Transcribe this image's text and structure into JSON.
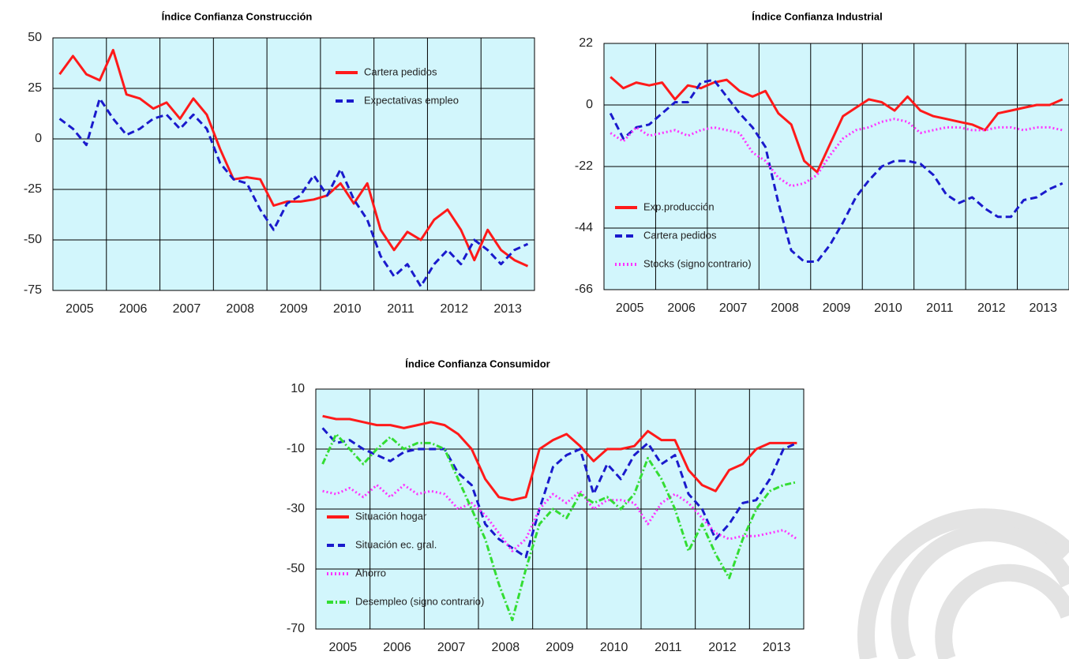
{
  "chart_data": [
    {
      "type": "line",
      "title": "Índice Confianza Construcción",
      "categories": [
        "2005",
        null,
        null,
        null,
        "2006",
        null,
        null,
        null,
        "2007",
        null,
        null,
        null,
        "2008",
        null,
        null,
        null,
        "2009",
        null,
        null,
        null,
        "2010",
        null,
        null,
        null,
        "2011",
        null,
        null,
        null,
        "2012",
        null,
        null,
        null,
        "2013",
        null,
        null,
        null
      ],
      "series": [
        {
          "name": "Cartera pedidos",
          "color": "#ff1a1a",
          "style": "solid",
          "values": [
            32,
            41,
            32,
            29,
            44,
            22,
            20,
            15,
            18,
            10,
            20,
            12,
            -5,
            -20,
            -19,
            -20,
            -33,
            -31,
            -31,
            -30,
            -28,
            -22,
            -32,
            -22,
            -45,
            -55,
            -46,
            -50,
            -40,
            -35,
            -45,
            -60,
            -45,
            -55,
            -60,
            -63
          ]
        },
        {
          "name": "Expectativas empleo",
          "color": "#1a1acc",
          "style": "dashed",
          "values": [
            10,
            5,
            -3,
            20,
            10,
            2,
            5,
            10,
            12,
            5,
            12,
            5,
            -12,
            -20,
            -22,
            -35,
            -45,
            -32,
            -28,
            -18,
            -28,
            -15,
            -30,
            -40,
            -58,
            -68,
            -62,
            -73,
            -62,
            -55,
            -62,
            -50,
            -55,
            -62,
            -55,
            -52
          ]
        }
      ],
      "ylim": [
        -75,
        50
      ],
      "yticks": [
        -75,
        -50,
        -25,
        0,
        25,
        50
      ],
      "grid": true,
      "legend": "upper right"
    },
    {
      "type": "line",
      "title": "Índice Confianza Industrial",
      "categories": [
        "2005",
        null,
        null,
        null,
        "2006",
        null,
        null,
        null,
        "2007",
        null,
        null,
        null,
        "2008",
        null,
        null,
        null,
        "2009",
        null,
        null,
        null,
        "2010",
        null,
        null,
        null,
        "2011",
        null,
        null,
        null,
        "2012",
        null,
        null,
        null,
        "2013",
        null,
        null,
        null
      ],
      "series": [
        {
          "name": "Exp.producción",
          "color": "#ff1a1a",
          "style": "solid",
          "values": [
            10,
            6,
            8,
            7,
            8,
            2,
            7,
            6,
            8,
            9,
            5,
            3,
            5,
            -3,
            -7,
            -20,
            -24,
            -14,
            -4,
            -1,
            2,
            1,
            -2,
            3,
            -2,
            -4,
            -5,
            -6,
            -7,
            -9,
            -3,
            -2,
            -1,
            0,
            0,
            2
          ]
        },
        {
          "name": "Cartera pedidos",
          "color": "#1a1acc",
          "style": "dashed",
          "values": [
            -3,
            -12,
            -8,
            -7,
            -3,
            1,
            1,
            8,
            9,
            3,
            -3,
            -8,
            -15,
            -35,
            -52,
            -56,
            -56,
            -50,
            -42,
            -33,
            -27,
            -22,
            -20,
            -20,
            -21,
            -25,
            -32,
            -35,
            -33,
            -37,
            -40,
            -40,
            -34,
            -33,
            -30,
            -28
          ]
        },
        {
          "name": "Stocks (signo contrario)",
          "color": "#ff33ff",
          "style": "dotted",
          "values": [
            -10,
            -13,
            -8,
            -11,
            -10,
            -9,
            -11,
            -9,
            -8,
            -9,
            -10,
            -17,
            -20,
            -26,
            -29,
            -28,
            -25,
            -18,
            -12,
            -9,
            -8,
            -6,
            -5,
            -6,
            -10,
            -9,
            -8,
            -8,
            -9,
            -9,
            -8,
            -8,
            -9,
            -8,
            -8,
            -9
          ]
        }
      ],
      "ylim": [
        -66,
        22
      ],
      "yticks": [
        -66,
        -44,
        -22,
        0,
        22
      ],
      "grid": true,
      "legend": "lower left"
    },
    {
      "type": "line",
      "title": "Índice Confianza Consumidor",
      "categories": [
        "2005",
        null,
        null,
        null,
        "2006",
        null,
        null,
        null,
        "2007",
        null,
        null,
        null,
        "2008",
        null,
        null,
        null,
        "2009",
        null,
        null,
        null,
        "2010",
        null,
        null,
        null,
        "2011",
        null,
        null,
        null,
        "2012",
        null,
        null,
        null,
        "2013",
        null,
        null,
        null
      ],
      "series": [
        {
          "name": "Situación hogar",
          "color": "#ff1a1a",
          "style": "solid",
          "values": [
            1,
            0,
            0,
            -1,
            -2,
            -2,
            -3,
            -2,
            -1,
            -2,
            -5,
            -10,
            -20,
            -26,
            -27,
            -26,
            -10,
            -7,
            -5,
            -9,
            -14,
            -10,
            -10,
            -9,
            -4,
            -7,
            -7,
            -17,
            -22,
            -24,
            -17,
            -15,
            -10,
            -8,
            -8,
            -8
          ]
        },
        {
          "name": "Situación ec. gral.",
          "color": "#1a1acc",
          "style": "dashed",
          "values": [
            -3,
            -8,
            -7,
            -10,
            -12,
            -14,
            -11,
            -10,
            -10,
            -10,
            -18,
            -22,
            -35,
            -40,
            -43,
            -46,
            -30,
            -16,
            -12,
            -10,
            -25,
            -15,
            -20,
            -12,
            -8,
            -15,
            -12,
            -25,
            -30,
            -40,
            -35,
            -28,
            -27,
            -20,
            -10,
            -8
          ]
        },
        {
          "name": "Ahorro",
          "color": "#ff33ff",
          "style": "dotted",
          "values": [
            -24,
            -25,
            -23,
            -26,
            -22,
            -26,
            -22,
            -25,
            -24,
            -25,
            -30,
            -28,
            -32,
            -38,
            -44,
            -40,
            -30,
            -25,
            -28,
            -24,
            -30,
            -27,
            -27,
            -28,
            -35,
            -28,
            -25,
            -28,
            -33,
            -38,
            -40,
            -39,
            -39,
            -38,
            -37,
            -40
          ]
        },
        {
          "name": "Desempleo (signo contrario)",
          "color": "#33dd33",
          "style": "dashdot",
          "values": [
            -15,
            -5,
            -10,
            -15,
            -10,
            -6,
            -10,
            -8,
            -8,
            -10,
            -20,
            -30,
            -40,
            -55,
            -67,
            -50,
            -35,
            -30,
            -33,
            -25,
            -28,
            -26,
            -30,
            -25,
            -13,
            -20,
            -30,
            -44,
            -35,
            -45,
            -53,
            -40,
            -30,
            -24,
            -22,
            -21
          ]
        }
      ],
      "ylim": [
        -70,
        10
      ],
      "yticks": [
        -70,
        -50,
        -30,
        -10,
        10
      ],
      "grid": true,
      "legend": "lower left"
    }
  ]
}
